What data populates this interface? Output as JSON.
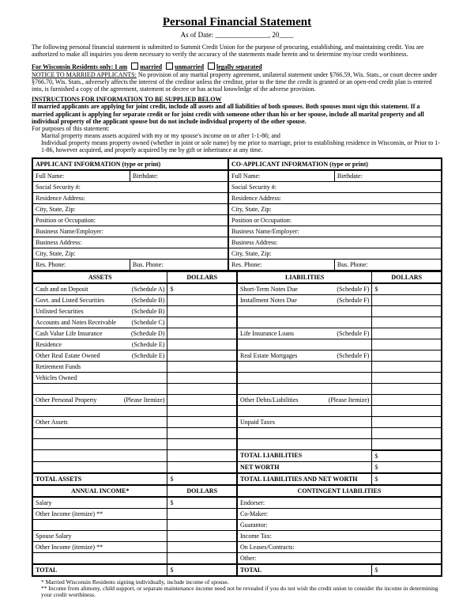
{
  "title": "Personal Financial Statement",
  "asof": {
    "prefix": "As of Date:",
    "suffix": ", 20"
  },
  "intro": "The following personal financial statement is submitted to Summit Credit Union for the purpose of procuring, establishing, and maintaining credit. You are authorized to make all inquiries you deem necessary to verify the accuracy of the statements made herein and to determine my/our credit worthiness.",
  "wisconsin": {
    "lead": "For Wisconsin Residents only:  I am",
    "opt1": "married",
    "opt2": "unmarried",
    "opt3": "legally separated",
    "notice_head": "NOTICE TO MARRIED APPLICANTS:",
    "notice": " No provision of any marital property agreement, unilateral statement under §766.59, Wis. Stats., or court decree under §766.70, Wis. Stats., adversely affects the interest of the creditor unless the creditor, prior to the time the credit is granted or an open-end credit plan is entered into, is furnished a copy of the agreement, statement or decree or has actual knowledge of the adverse provision."
  },
  "instructions": {
    "head": "INSTRUCTIONS FOR INFORMATION TO BE SUPPLIED BELOW",
    "body": "If married applicants are applying for joint credit, include all assets and all liabilities of both spouses. Both spouses must sign this statement. If a married applicant is applying for separate credit or for joint credit with someone other than his or her spouse, include all marital property and all individual property of the applicant spouse but do not include individual property of the other spouse.",
    "purposes": "For purposes of this statement:",
    "p1": "Marital property means assets acquired with my or my spouse's income on or after 1-1-86; and",
    "p2": "Individual property means property owned (whether in joint or sole name) by me prior to marriage, prior to establishing residence in Wisconsin, or Prior to 1-1-86, however acquired, and properly acquired by me by gift or inheritance at any time."
  },
  "headers": {
    "applicant": "APPLICANT INFORMATION   (type or print)",
    "coapplicant": "CO-APPLICANT INFORMATION   (type or print)",
    "assets": "ASSETS",
    "dollars": "DOLLARS",
    "liabilities": "LIABILITIES",
    "annual": "ANNUAL INCOME*",
    "contingent": "CONTINGENT LIABILITIES"
  },
  "info_rows": {
    "fullname": "Full Name:",
    "birthdate": "Birthdate:",
    "ssn": "Social Security #:",
    "addr": "Residence Address:",
    "csz": "City, State, Zip:",
    "pos": "Position or Occupation:",
    "emp": "Business Name/Employer:",
    "baddr": "Business Address:",
    "bcsz": "City, State, Zip:",
    "resphone": "Res. Phone:",
    "busphone": "Bus. Phone:"
  },
  "assets": [
    {
      "label": "Cash and on Deposit",
      "sched": "(Schedule A)",
      "d": "$"
    },
    {
      "label": "Govt. and Listed Securities",
      "sched": "(Schedule B)",
      "d": ""
    },
    {
      "label": "Unlisted Securities",
      "sched": "(Schedule B)",
      "d": ""
    },
    {
      "label": "Accounts and Notes Receivable",
      "sched": "(Schedule C)",
      "d": ""
    },
    {
      "label": "Cash Value Life Insurance",
      "sched": "(Schedule D)",
      "d": ""
    },
    {
      "label": "Residence",
      "sched": "(Schedule E)",
      "d": ""
    },
    {
      "label": "Other Real Estate Owned",
      "sched": "(Schedule E)",
      "d": ""
    },
    {
      "label": "Retirement Funds",
      "sched": "",
      "d": ""
    },
    {
      "label": "Vehicles Owned",
      "sched": "",
      "d": ""
    },
    {
      "label": "",
      "sched": "",
      "d": ""
    },
    {
      "label": "Other Personal Property",
      "sched": "(Please Itemize)",
      "d": ""
    },
    {
      "label": "",
      "sched": "",
      "d": ""
    },
    {
      "label": "Other Assets",
      "sched": "",
      "d": ""
    },
    {
      "label": "",
      "sched": "",
      "d": ""
    },
    {
      "label": "",
      "sched": "",
      "d": ""
    }
  ],
  "liabilities": [
    {
      "label": "Short-Term Notes Due",
      "sched": "(Schedule F)",
      "d": "$"
    },
    {
      "label": "Installment Notes Due",
      "sched": "(Schedule F)",
      "d": ""
    },
    {
      "label": "",
      "sched": "",
      "d": ""
    },
    {
      "label": "",
      "sched": "",
      "d": ""
    },
    {
      "label": "Life Insurance Loans",
      "sched": "(Schedule F)",
      "d": ""
    },
    {
      "label": "",
      "sched": "",
      "d": ""
    },
    {
      "label": "Real Estate Mortgages",
      "sched": "(Schedule F)",
      "d": ""
    },
    {
      "label": "",
      "sched": "",
      "d": ""
    },
    {
      "label": "",
      "sched": "",
      "d": ""
    },
    {
      "label": "",
      "sched": "",
      "d": ""
    },
    {
      "label": "Other Debts/Liabilities",
      "sched": "(Please Itemize)",
      "d": ""
    },
    {
      "label": "",
      "sched": "",
      "d": ""
    },
    {
      "label": "Unpaid Taxes",
      "sched": "",
      "d": ""
    },
    {
      "label": "",
      "sched": "",
      "d": ""
    }
  ],
  "totals": {
    "total_liab": "TOTAL LIABILITIES",
    "networth": "NET WORTH",
    "total_assets": "TOTAL ASSETS",
    "total_liab_nw": "TOTAL LIABILITIES AND NET WORTH",
    "total": "TOTAL",
    "d": "$"
  },
  "income": [
    {
      "label": "Salary",
      "d": "$"
    },
    {
      "label": "Other Income (itemize) **",
      "d": ""
    },
    {
      "label": "",
      "d": ""
    },
    {
      "label": "Spouse Salary",
      "d": ""
    },
    {
      "label": "Other Income (itemize) **",
      "d": ""
    },
    {
      "label": "",
      "d": ""
    }
  ],
  "contingent": [
    {
      "label": "Endorser:"
    },
    {
      "label": "Co-Maker:"
    },
    {
      "label": "Guarantor:"
    },
    {
      "label": "Income Tax:"
    },
    {
      "label": "On Leases/Contracts:"
    },
    {
      "label": "Other:"
    }
  ],
  "footnotes": {
    "f1": "* Married Wisconsin Residents signing individually, include income of spouse.",
    "f2": "** Income from alimony, child support, or separate maintenance income need not be revealed if you do not wish the credit union to consider the income in determining your credit worthiness."
  }
}
